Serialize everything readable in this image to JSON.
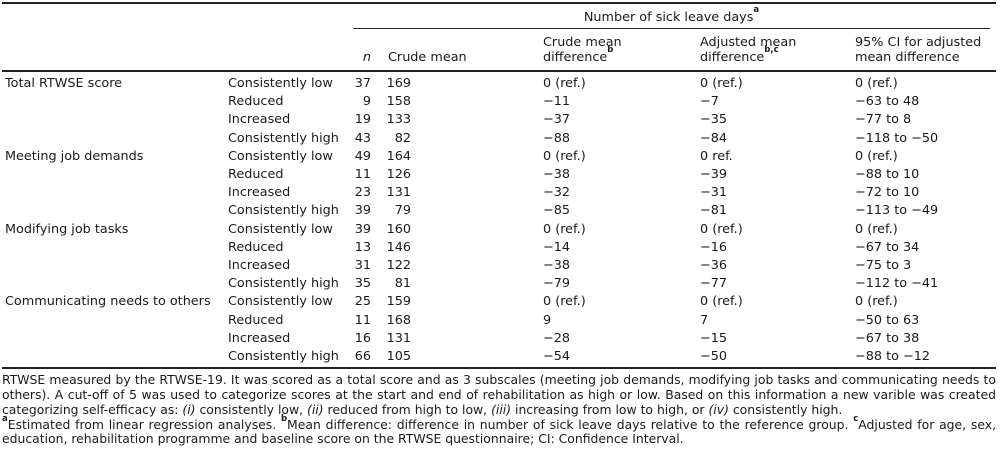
{
  "colors": {
    "background": "#ffffff",
    "text": "#1a1a1a",
    "rule": "#222222"
  },
  "table": {
    "spanner": {
      "text": "Number of sick leave days",
      "sup": "a"
    },
    "columns": [
      {
        "line1": "",
        "line2": "n",
        "sup": "",
        "italic": true
      },
      {
        "line1": "",
        "line2": "Crude mean",
        "sup": ""
      },
      {
        "line1": "Crude mean",
        "line2": "difference",
        "sup": "b"
      },
      {
        "line1": "Adjusted mean",
        "line2": "difference",
        "sup": "b,c"
      },
      {
        "line1": "95% CI for adjusted",
        "line2": "mean difference",
        "sup": ""
      }
    ],
    "rows": [
      {
        "group": "Total RTWSE score",
        "category": "Consistently low",
        "n": "37",
        "crude_mean": "169",
        "crude_diff": "0 (ref.)",
        "adj_diff": "0 (ref.)",
        "ci": "0 (ref.)"
      },
      {
        "group": "",
        "category": "Reduced",
        "n": "9",
        "crude_mean": "158",
        "crude_diff": "−11",
        "adj_diff": "−7",
        "ci": "−63 to 48"
      },
      {
        "group": "",
        "category": "Increased",
        "n": "19",
        "crude_mean": "133",
        "crude_diff": "−37",
        "adj_diff": "−35",
        "ci": "−77 to 8"
      },
      {
        "group": "",
        "category": "Consistently high",
        "n": "43",
        "crude_mean": "82",
        "crude_diff": "−88",
        "adj_diff": "−84",
        "ci": "−118 to −50"
      },
      {
        "group": "Meeting job demands",
        "category": "Consistently low",
        "n": "49",
        "crude_mean": "164",
        "crude_diff": "0 (ref.)",
        "adj_diff": "0 ref.",
        "ci": "0 (ref.)"
      },
      {
        "group": "",
        "category": "Reduced",
        "n": "11",
        "crude_mean": "126",
        "crude_diff": "−38",
        "adj_diff": "−39",
        "ci": "−88 to 10"
      },
      {
        "group": "",
        "category": "Increased",
        "n": "23",
        "crude_mean": "131",
        "crude_diff": "−32",
        "adj_diff": "−31",
        "ci": "−72 to 10"
      },
      {
        "group": "",
        "category": "Consistently high",
        "n": "39",
        "crude_mean": "79",
        "crude_diff": "−85",
        "adj_diff": "−81",
        "ci": "−113 to −49"
      },
      {
        "group": "Modifying job tasks",
        "category": "Consistently low",
        "n": "39",
        "crude_mean": "160",
        "crude_diff": "0 (ref.)",
        "adj_diff": "0 (ref.)",
        "ci": "0 (ref.)"
      },
      {
        "group": "",
        "category": "Reduced",
        "n": "13",
        "crude_mean": "146",
        "crude_diff": "−14",
        "adj_diff": "−16",
        "ci": "−67 to 34"
      },
      {
        "group": "",
        "category": "Increased",
        "n": "31",
        "crude_mean": "122",
        "crude_diff": "−38",
        "adj_diff": "−36",
        "ci": "−75 to 3"
      },
      {
        "group": "",
        "category": "Consistently high",
        "n": "35",
        "crude_mean": "81",
        "crude_diff": "−79",
        "adj_diff": "−77",
        "ci": "−112 to −41"
      },
      {
        "group": "Communicating needs to others",
        "category": "Consistently low",
        "n": "25",
        "crude_mean": "159",
        "crude_diff": "0 (ref.)",
        "adj_diff": "0 (ref.)",
        "ci": "0 (ref.)"
      },
      {
        "group": "",
        "category": "Reduced",
        "n": "11",
        "crude_mean": "168",
        "crude_diff": "9",
        "adj_diff": "7",
        "ci": "−50 to 63"
      },
      {
        "group": "",
        "category": "Increased",
        "n": "16",
        "crude_mean": "131",
        "crude_diff": "−28",
        "adj_diff": "−15",
        "ci": "−67 to 38"
      },
      {
        "group": "",
        "category": "Consistently high",
        "n": "66",
        "crude_mean": "105",
        "crude_diff": "−54",
        "adj_diff": "−50",
        "ci": "−88 to −12"
      }
    ]
  },
  "footnotes": {
    "lines": [
      {
        "justify_last": true,
        "segments": [
          {
            "t": "RTWSE measured by the RTWSE-19. It was scored as a total score and as 3 subscales (meeting job demands, modifying job tasks and communicating needs to"
          }
        ]
      },
      {
        "justify_last": true,
        "segments": [
          {
            "t": "others). A cut-off of 5 was used to categorize scores at the start and end of rehabilitation as high or low. Based on this information a new varible was created"
          }
        ]
      },
      {
        "justify_last": false,
        "segments": [
          {
            "t": "categorizing self-efficacy as: "
          },
          {
            "t": "(i)",
            "italic": true
          },
          {
            "t": " consistently low, "
          },
          {
            "t": "(ii)",
            "italic": true
          },
          {
            "t": " reduced from high to low, "
          },
          {
            "t": "(iii)",
            "italic": true
          },
          {
            "t": " increasing from low to high, or "
          },
          {
            "t": "(iv)",
            "italic": true
          },
          {
            "t": " consistently high."
          }
        ]
      },
      {
        "justify_last": true,
        "segments": [
          {
            "t": "a",
            "sup": true
          },
          {
            "t": "Estimated from linear regression analyses. "
          },
          {
            "t": "b",
            "sup": true
          },
          {
            "t": "Mean difference: difference in number of sick leave days relative to the reference group. "
          },
          {
            "t": "c",
            "sup": true
          },
          {
            "t": "Adjusted for age, sex,"
          }
        ]
      },
      {
        "justify_last": false,
        "segments": [
          {
            "t": "education, rehabilitation programme and baseline score on the RTWSE questionnaire; CI: Confidence Interval."
          }
        ]
      }
    ]
  }
}
